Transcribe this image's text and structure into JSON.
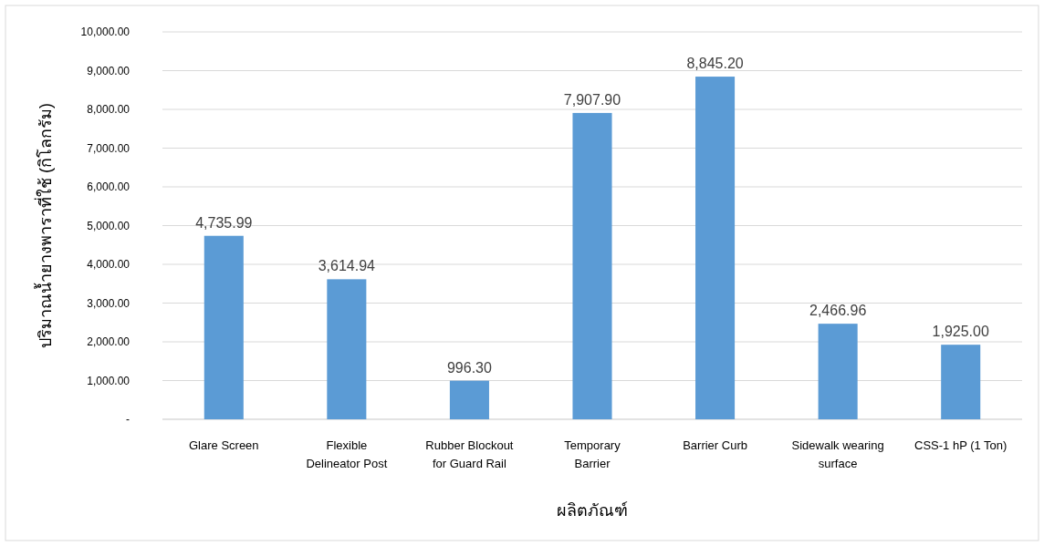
{
  "chart_data": {
    "type": "bar",
    "ylabel": "ปริมาณน้ำยางพาราที่ใช้ (กิโลกรัม)",
    "xlabel": "ผลิตภัณฑ์",
    "categories": [
      "Glare Screen",
      "Flexible\nDelineator Post",
      "Rubber Blockout\nfor Guard Rail",
      "Temporary\nBarrier",
      "Barrier Curb",
      "Sidewalk wearing\nsurface",
      "CSS-1 hP (1 Ton)"
    ],
    "values": [
      4735.99,
      3614.94,
      996.3,
      7907.9,
      8845.2,
      2466.96,
      1925.0
    ],
    "value_labels": [
      "4,735.99",
      "3,614.94",
      "996.30",
      "7,907.90",
      "8,845.20",
      "2,466.96",
      "1,925.00"
    ],
    "color": "#5b9bd5",
    "ylim": [
      0,
      10000
    ],
    "yticks": [
      {
        "value": 0,
        "label": "-"
      },
      {
        "value": 1000,
        "label": "1,000.00"
      },
      {
        "value": 2000,
        "label": "2,000.00"
      },
      {
        "value": 3000,
        "label": "3,000.00"
      },
      {
        "value": 4000,
        "label": "4,000.00"
      },
      {
        "value": 5000,
        "label": "5,000.00"
      },
      {
        "value": 6000,
        "label": "6,000.00"
      },
      {
        "value": 7000,
        "label": "7,000.00"
      },
      {
        "value": 8000,
        "label": "8,000.00"
      },
      {
        "value": 9000,
        "label": "9,000.00"
      },
      {
        "value": 10000,
        "label": "10,000.00"
      }
    ],
    "grid": "y"
  }
}
